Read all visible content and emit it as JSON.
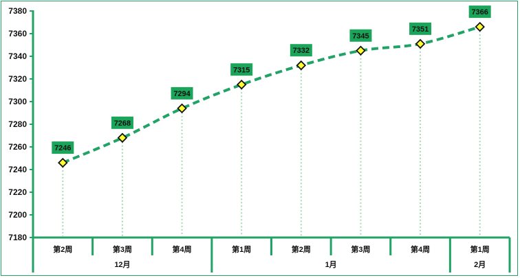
{
  "chart_data": {
    "type": "line",
    "title": "",
    "xlabel": "",
    "ylabel": "",
    "ylim": [
      7180,
      7380
    ],
    "yticks": [
      7180,
      7200,
      7220,
      7240,
      7260,
      7280,
      7300,
      7320,
      7340,
      7360,
      7380
    ],
    "grid": false,
    "legend": null,
    "categories": [
      "第2周",
      "第3周",
      "第4周",
      "第1周",
      "第2周",
      "第3周",
      "第4周",
      "第1周"
    ],
    "category_groups": [
      {
        "label": "12月",
        "span": 3
      },
      {
        "label": "1月",
        "span": 4
      },
      {
        "label": "2月",
        "span": 1
      }
    ],
    "series": [
      {
        "name": "",
        "values": [
          7246,
          7268,
          7294,
          7315,
          7332,
          7345,
          7351,
          7366
        ]
      }
    ],
    "data_labels": [
      "7246",
      "7268",
      "7294",
      "7315",
      "7332",
      "7345",
      "7351",
      "7366"
    ],
    "style": {
      "line_color": "#21a366",
      "line_style": "dashed-smooth",
      "marker": "diamond",
      "marker_fill": "#ffff33",
      "marker_stroke": "#111111",
      "label_bg": "#1aa55a",
      "drop_line_color": "#a8d8b8",
      "axis_color": "#21a366"
    }
  }
}
